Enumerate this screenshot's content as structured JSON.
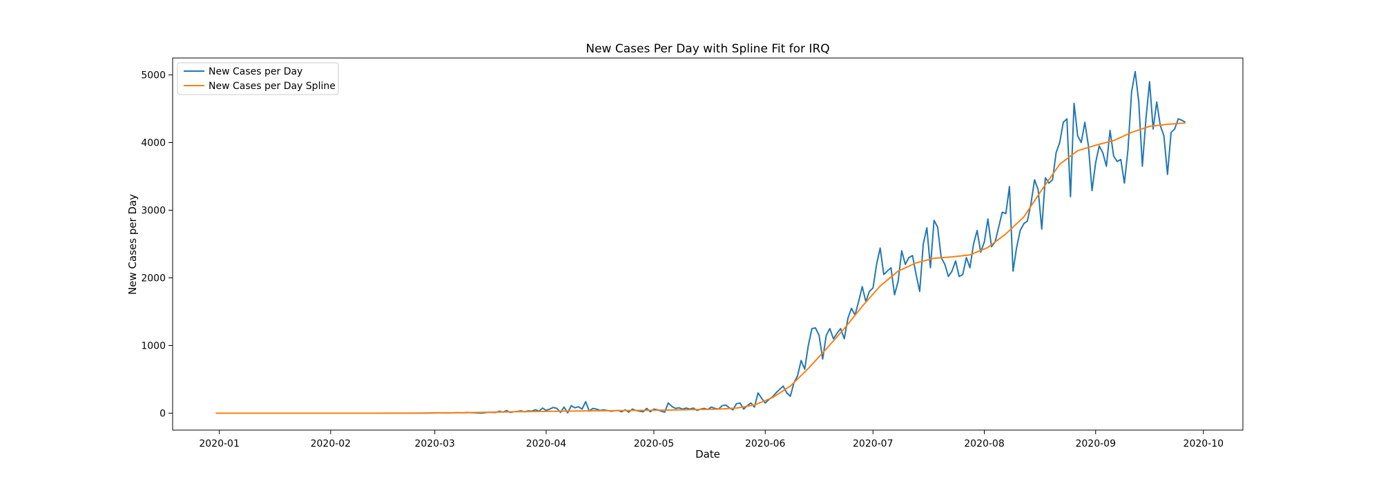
{
  "chart_data": {
    "type": "line",
    "title": "New Cases Per Day with Spline Fit for IRQ",
    "xlabel": "Date",
    "ylabel": "New Cases per Day",
    "x_start_date": "2019-12-31",
    "xlim_days": [
      -12,
      286
    ],
    "ylim": [
      -250,
      5250
    ],
    "x_ticks": [
      {
        "label": "2020-01",
        "day": 1
      },
      {
        "label": "2020-02",
        "day": 32
      },
      {
        "label": "2020-03",
        "day": 61
      },
      {
        "label": "2020-04",
        "day": 92
      },
      {
        "label": "2020-05",
        "day": 122
      },
      {
        "label": "2020-06",
        "day": 153
      },
      {
        "label": "2020-07",
        "day": 183
      },
      {
        "label": "2020-08",
        "day": 214
      },
      {
        "label": "2020-09",
        "day": 245
      },
      {
        "label": "2020-10",
        "day": 275
      }
    ],
    "y_ticks": [
      {
        "label": "0",
        "value": 0
      },
      {
        "label": "1000",
        "value": 1000
      },
      {
        "label": "2000",
        "value": 2000
      },
      {
        "label": "3000",
        "value": 3000
      },
      {
        "label": "4000",
        "value": 4000
      },
      {
        "label": "5000",
        "value": 5000
      }
    ],
    "legend_position": "top-left",
    "series": [
      {
        "name": "New Cases per Day",
        "color": "#1f77b4",
        "points": [
          [
            0,
            0
          ],
          [
            10,
            0
          ],
          [
            20,
            0
          ],
          [
            30,
            0
          ],
          [
            40,
            0
          ],
          [
            50,
            0
          ],
          [
            57,
            0
          ],
          [
            60,
            2
          ],
          [
            62,
            5
          ],
          [
            65,
            3
          ],
          [
            67,
            8
          ],
          [
            69,
            5
          ],
          [
            70,
            10
          ],
          [
            72,
            5
          ],
          [
            74,
            0
          ],
          [
            76,
            12
          ],
          [
            78,
            10
          ],
          [
            79,
            30
          ],
          [
            80,
            15
          ],
          [
            81,
            40
          ],
          [
            82,
            10
          ],
          [
            83,
            20
          ],
          [
            84,
            25
          ],
          [
            85,
            35
          ],
          [
            86,
            20
          ],
          [
            87,
            35
          ],
          [
            88,
            30
          ],
          [
            89,
            50
          ],
          [
            90,
            30
          ],
          [
            91,
            75
          ],
          [
            92,
            40
          ],
          [
            93,
            60
          ],
          [
            94,
            85
          ],
          [
            95,
            70
          ],
          [
            96,
            10
          ],
          [
            97,
            90
          ],
          [
            98,
            5
          ],
          [
            99,
            110
          ],
          [
            100,
            80
          ],
          [
            101,
            95
          ],
          [
            102,
            60
          ],
          [
            103,
            170
          ],
          [
            104,
            30
          ],
          [
            105,
            70
          ],
          [
            106,
            60
          ],
          [
            107,
            40
          ],
          [
            108,
            50
          ],
          [
            109,
            40
          ],
          [
            110,
            30
          ],
          [
            111,
            35
          ],
          [
            112,
            40
          ],
          [
            113,
            20
          ],
          [
            114,
            50
          ],
          [
            115,
            15
          ],
          [
            116,
            60
          ],
          [
            117,
            40
          ],
          [
            118,
            30
          ],
          [
            119,
            20
          ],
          [
            120,
            70
          ],
          [
            121,
            20
          ],
          [
            122,
            60
          ],
          [
            123,
            50
          ],
          [
            124,
            30
          ],
          [
            125,
            15
          ],
          [
            126,
            150
          ],
          [
            127,
            100
          ],
          [
            128,
            70
          ],
          [
            129,
            80
          ],
          [
            130,
            60
          ],
          [
            131,
            75
          ],
          [
            132,
            60
          ],
          [
            133,
            75
          ],
          [
            134,
            40
          ],
          [
            135,
            60
          ],
          [
            136,
            70
          ],
          [
            137,
            55
          ],
          [
            138,
            90
          ],
          [
            139,
            70
          ],
          [
            140,
            60
          ],
          [
            141,
            110
          ],
          [
            142,
            120
          ],
          [
            143,
            80
          ],
          [
            144,
            50
          ],
          [
            145,
            140
          ],
          [
            146,
            150
          ],
          [
            147,
            60
          ],
          [
            148,
            110
          ],
          [
            149,
            150
          ],
          [
            150,
            90
          ],
          [
            151,
            300
          ],
          [
            152,
            220
          ],
          [
            153,
            150
          ],
          [
            154,
            200
          ],
          [
            155,
            240
          ],
          [
            156,
            300
          ],
          [
            157,
            350
          ],
          [
            158,
            400
          ],
          [
            159,
            300
          ],
          [
            160,
            250
          ],
          [
            161,
            450
          ],
          [
            162,
            550
          ],
          [
            163,
            780
          ],
          [
            164,
            650
          ],
          [
            165,
            1000
          ],
          [
            166,
            1250
          ],
          [
            167,
            1260
          ],
          [
            168,
            1150
          ],
          [
            169,
            800
          ],
          [
            170,
            1150
          ],
          [
            171,
            1250
          ],
          [
            172,
            1100
          ],
          [
            173,
            1180
          ],
          [
            174,
            1250
          ],
          [
            175,
            1100
          ],
          [
            176,
            1400
          ],
          [
            177,
            1550
          ],
          [
            178,
            1450
          ],
          [
            179,
            1650
          ],
          [
            180,
            1870
          ],
          [
            181,
            1650
          ],
          [
            182,
            1800
          ],
          [
            183,
            1850
          ],
          [
            184,
            2200
          ],
          [
            185,
            2440
          ],
          [
            186,
            2050
          ],
          [
            187,
            2100
          ],
          [
            188,
            2150
          ],
          [
            189,
            1750
          ],
          [
            190,
            1950
          ],
          [
            191,
            2400
          ],
          [
            192,
            2200
          ],
          [
            193,
            2300
          ],
          [
            194,
            2330
          ],
          [
            195,
            2050
          ],
          [
            196,
            1800
          ],
          [
            197,
            2500
          ],
          [
            198,
            2740
          ],
          [
            199,
            2150
          ],
          [
            200,
            2850
          ],
          [
            201,
            2750
          ],
          [
            202,
            2300
          ],
          [
            203,
            2200
          ],
          [
            204,
            2020
          ],
          [
            205,
            2100
          ],
          [
            206,
            2250
          ],
          [
            207,
            2020
          ],
          [
            208,
            2050
          ],
          [
            209,
            2300
          ],
          [
            210,
            2150
          ],
          [
            211,
            2500
          ],
          [
            212,
            2700
          ],
          [
            213,
            2380
          ],
          [
            214,
            2530
          ],
          [
            215,
            2870
          ],
          [
            216,
            2460
          ],
          [
            217,
            2530
          ],
          [
            218,
            2750
          ],
          [
            219,
            2970
          ],
          [
            220,
            2950
          ],
          [
            221,
            3350
          ],
          [
            222,
            2100
          ],
          [
            223,
            2450
          ],
          [
            224,
            2700
          ],
          [
            225,
            2800
          ],
          [
            226,
            2840
          ],
          [
            227,
            3100
          ],
          [
            228,
            3450
          ],
          [
            229,
            3300
          ],
          [
            230,
            2720
          ],
          [
            231,
            3480
          ],
          [
            232,
            3400
          ],
          [
            233,
            3450
          ],
          [
            234,
            3850
          ],
          [
            235,
            4000
          ],
          [
            236,
            4300
          ],
          [
            237,
            4350
          ],
          [
            238,
            3200
          ],
          [
            239,
            4580
          ],
          [
            240,
            4100
          ],
          [
            241,
            4000
          ],
          [
            242,
            4300
          ],
          [
            243,
            3950
          ],
          [
            244,
            3290
          ],
          [
            245,
            3700
          ],
          [
            246,
            3950
          ],
          [
            247,
            3850
          ],
          [
            248,
            3650
          ],
          [
            249,
            4180
          ],
          [
            250,
            3800
          ],
          [
            251,
            3720
          ],
          [
            252,
            3750
          ],
          [
            253,
            3400
          ],
          [
            254,
            3900
          ],
          [
            255,
            4750
          ],
          [
            256,
            5050
          ],
          [
            257,
            4600
          ],
          [
            258,
            3650
          ],
          [
            259,
            4350
          ],
          [
            260,
            4900
          ],
          [
            261,
            4200
          ],
          [
            262,
            4600
          ],
          [
            263,
            4250
          ],
          [
            264,
            4100
          ],
          [
            265,
            3530
          ],
          [
            266,
            4150
          ],
          [
            267,
            4200
          ],
          [
            268,
            4350
          ],
          [
            269,
            4330
          ],
          [
            270,
            4300
          ]
        ]
      },
      {
        "name": "New Cases per Day Spline",
        "color": "#ff7f0e",
        "points": [
          [
            0,
            0
          ],
          [
            20,
            0
          ],
          [
            40,
            0
          ],
          [
            55,
            1
          ],
          [
            60,
            3
          ],
          [
            65,
            5
          ],
          [
            70,
            8
          ],
          [
            75,
            12
          ],
          [
            80,
            18
          ],
          [
            85,
            22
          ],
          [
            90,
            25
          ],
          [
            95,
            28
          ],
          [
            100,
            32
          ],
          [
            105,
            35
          ],
          [
            110,
            37
          ],
          [
            115,
            40
          ],
          [
            120,
            42
          ],
          [
            125,
            45
          ],
          [
            130,
            50
          ],
          [
            135,
            55
          ],
          [
            140,
            60
          ],
          [
            145,
            75
          ],
          [
            150,
            120
          ],
          [
            155,
            230
          ],
          [
            160,
            400
          ],
          [
            165,
            660
          ],
          [
            170,
            950
          ],
          [
            175,
            1250
          ],
          [
            180,
            1580
          ],
          [
            185,
            1880
          ],
          [
            190,
            2100
          ],
          [
            195,
            2220
          ],
          [
            200,
            2290
          ],
          [
            205,
            2310
          ],
          [
            210,
            2340
          ],
          [
            215,
            2450
          ],
          [
            220,
            2650
          ],
          [
            225,
            2900
          ],
          [
            230,
            3300
          ],
          [
            235,
            3680
          ],
          [
            240,
            3880
          ],
          [
            245,
            3960
          ],
          [
            250,
            4030
          ],
          [
            255,
            4150
          ],
          [
            260,
            4240
          ],
          [
            265,
            4270
          ],
          [
            270,
            4290
          ]
        ]
      }
    ]
  }
}
